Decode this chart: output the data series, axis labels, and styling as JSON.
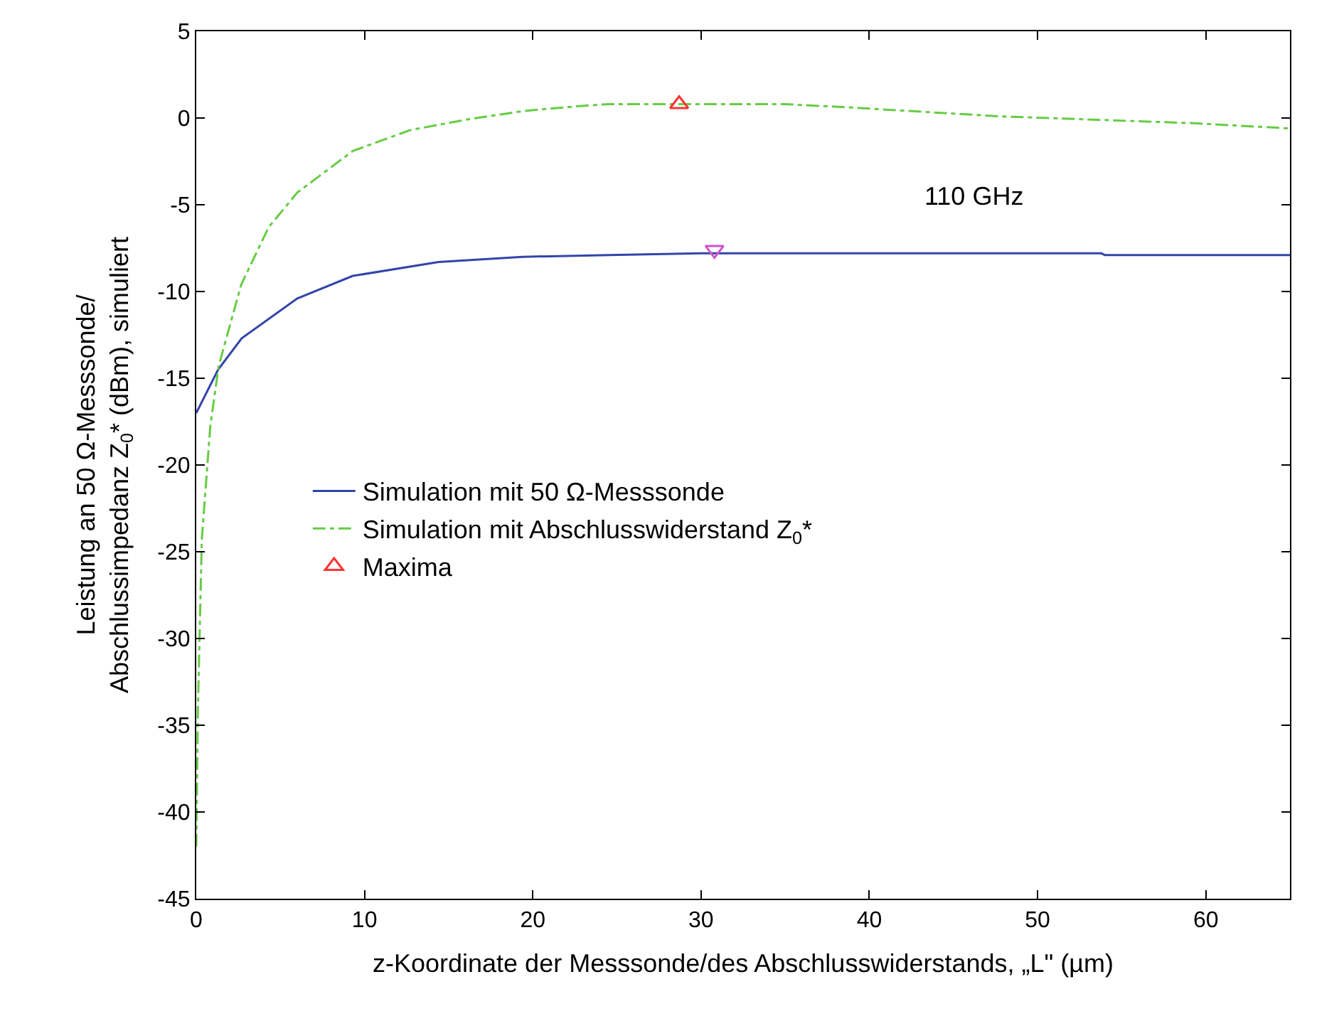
{
  "chart_data": {
    "type": "line",
    "xlabel": "z-Koordinate der Messsonde/des Abschlusswiderstands, „L\" (µm)",
    "ylabel": "Leistung an 50 Ω-Messsonde/\nAbschlussimpedanz Z$_{0}$* (dBm), simuliert",
    "xlim": [
      0,
      65
    ],
    "xticks": [
      0,
      10,
      20,
      30,
      40,
      50,
      60
    ],
    "ylim": [
      -45,
      5
    ],
    "yticks": [
      -45,
      -40,
      -35,
      -30,
      -25,
      -20,
      -15,
      -10,
      -5,
      0,
      5
    ],
    "legend": "center left",
    "annotations": [
      "110 GHz"
    ],
    "series": [
      {
        "name": "Simulation mit 50 Ω-Messsonde",
        "color": "#3344aa",
        "line_style": "solid",
        "marker": "none",
        "x": [
          0,
          1.3,
          2.7,
          6,
          9.3,
          14.4,
          19.4,
          24.5,
          30,
          40,
          53.8,
          54,
          65
        ],
        "values": [
          -17,
          -14.5,
          -12.7,
          -10.4,
          -9.1,
          -8.3,
          -8.0,
          -7.9,
          -7.8,
          -7.8,
          -7.8,
          -7.9,
          -7.9
        ]
      },
      {
        "name": "Simulation mit Abschlusswiderstand Z$_{0}$*",
        "color": "#66cc44",
        "line_style": "dashdot",
        "marker": "none",
        "x": [
          0,
          0.1,
          0.33,
          0.83,
          1.33,
          2.67,
          4.3,
          6,
          9.3,
          12.7,
          16,
          19.4,
          22.9,
          24.5,
          30,
          35,
          39,
          47.7,
          53.5,
          59.3,
          65
        ],
        "values": [
          -42,
          -34,
          -24.3,
          -17.8,
          -14.3,
          -9.6,
          -6.3,
          -4.3,
          -1.9,
          -0.7,
          -0.1,
          0.4,
          0.7,
          0.8,
          0.8,
          0.8,
          0.6,
          0.1,
          -0.1,
          -0.3,
          -0.6
        ]
      },
      {
        "type": "scatter",
        "name": "Maxima",
        "color": "#ff3333",
        "marker": "triangle",
        "x": [
          28.7
        ],
        "values": [
          0.8
        ]
      },
      {
        "type": "scatter",
        "color": "#cc55cc",
        "marker": "triangle-down",
        "x": [
          30.8
        ],
        "values": [
          -7.6
        ]
      }
    ]
  }
}
